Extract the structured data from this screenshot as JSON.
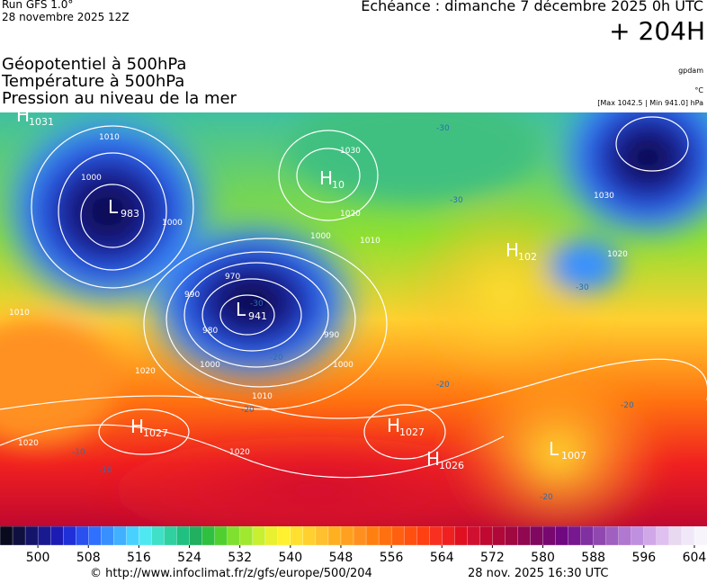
{
  "header": {
    "run": "Run GFS 1.0°",
    "run_date": "28 novembre 2025 12Z",
    "valid": "Echéance : dimanche 7 décembre 2025 0h UTC",
    "lead": "+ 204H",
    "fields": [
      "Géopotentiel à 500hPa",
      "Température à 500hPa",
      "Pression au niveau de la mer"
    ],
    "units": [
      "gpdam",
      "°C"
    ],
    "extremes": "[Max 1042.5 | Min 941.0] hPa"
  },
  "centers": [
    {
      "letter": "H",
      "value": "1031"
    },
    {
      "letter": "L",
      "value": "983"
    },
    {
      "letter": "H",
      "value": "10"
    },
    {
      "letter": "L",
      "value": "941"
    },
    {
      "letter": "H",
      "value": "102"
    },
    {
      "letter": "H",
      "value": "1027"
    },
    {
      "letter": "H",
      "value": "1027"
    },
    {
      "letter": "H",
      "value": "1026"
    },
    {
      "letter": "L",
      "value": "1007"
    }
  ],
  "isobar_labels": [
    "1010",
    "1000",
    "1000",
    "1030",
    "1020",
    "1000",
    "1010",
    "970",
    "990",
    "980",
    "1000",
    "990",
    "1000",
    "1010",
    "1020",
    "1020",
    "1020",
    "1010",
    "1020",
    "1030"
  ],
  "temperature_labels": [
    "-30",
    "-30",
    "-30",
    "-30",
    "-20",
    "-20",
    "-20",
    "-20",
    "-10",
    "-10",
    "-20"
  ],
  "colorbar": {
    "lim": [
      494,
      606
    ],
    "ticks": [
      500,
      508,
      516,
      524,
      532,
      540,
      548,
      556,
      564,
      572,
      580,
      588,
      596,
      604
    ],
    "colors": [
      "#0a0a1e",
      "#101040",
      "#14146a",
      "#1a1a90",
      "#1c1cb4",
      "#2030d8",
      "#2a50f0",
      "#3070ff",
      "#3890ff",
      "#40b0ff",
      "#48d0ff",
      "#50e8f0",
      "#40e0c8",
      "#30d0a0",
      "#20c080",
      "#20b060",
      "#30c040",
      "#50d030",
      "#80e030",
      "#a0e830",
      "#c8f030",
      "#e8f030",
      "#fff030",
      "#ffe030",
      "#ffd030",
      "#ffc030",
      "#ffb020",
      "#ffa020",
      "#ff9020",
      "#ff8010",
      "#ff7010",
      "#ff6010",
      "#ff5010",
      "#ff4010",
      "#f83020",
      "#f02020",
      "#e01020",
      "#d01030",
      "#c00830",
      "#b00838",
      "#a00840",
      "#900850",
      "#800860",
      "#780870",
      "#700880",
      "#781890",
      "#8030a0",
      "#9048b0",
      "#a060c0",
      "#b078d0",
      "#c090e0",
      "#d0a8e8",
      "#e0c0f0",
      "#e8d8f0",
      "#f0e8f8",
      "#f8f4fc"
    ]
  },
  "footer": {
    "source": "© http://www.infoclimat.fr/z/gfs/europe/500/204",
    "generated": "28 nov. 2025 16:30 UTC"
  }
}
